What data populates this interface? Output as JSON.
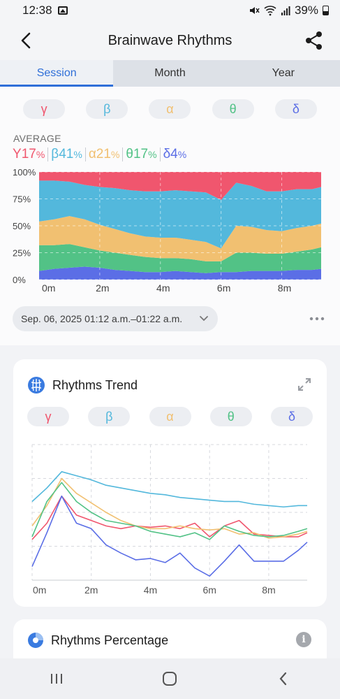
{
  "status": {
    "time": "12:38",
    "battery": "39%"
  },
  "app_bar": {
    "title": "Brainwave Rhythms"
  },
  "tabs": [
    {
      "label": "Session",
      "active": true
    },
    {
      "label": "Month",
      "active": false
    },
    {
      "label": "Year",
      "active": false
    }
  ],
  "bands": [
    {
      "symbol": "γ",
      "color": "#f0566e"
    },
    {
      "symbol": "β",
      "color": "#53b8dc"
    },
    {
      "symbol": "α",
      "color": "#f1c071"
    },
    {
      "symbol": "θ",
      "color": "#52c286"
    },
    {
      "symbol": "δ",
      "color": "#5b6ee6"
    }
  ],
  "average": {
    "label": "AVERAGE",
    "items": [
      {
        "symbol": "Y",
        "value": "17",
        "unit": "%",
        "color": "#f0566e"
      },
      {
        "symbol": "β",
        "value": "41",
        "unit": "%",
        "color": "#53b8dc"
      },
      {
        "symbol": "α",
        "value": "21",
        "unit": "%",
        "color": "#f1c071"
      },
      {
        "symbol": "θ",
        "value": "17",
        "unit": "%",
        "color": "#52c286"
      },
      {
        "symbol": "δ",
        "value": "4",
        "unit": "%",
        "color": "#5b6ee6"
      }
    ]
  },
  "session_range": "Sep. 06, 2025 01:12 a.m.–01:22 a.m.",
  "trend_card": {
    "title": "Rhythms Trend"
  },
  "percentage_card": {
    "title": "Rhythms Percentage"
  },
  "chart_data": [
    {
      "type": "area",
      "stacked": true,
      "y_unit": "%",
      "ylim": [
        0,
        100
      ],
      "yticks": [
        "0%",
        "25%",
        "50%",
        "75%",
        "100%"
      ],
      "xlim": [
        0,
        9.3
      ],
      "xticks": [
        "0m",
        "2m",
        "4m",
        "6m",
        "8m"
      ],
      "x": [
        0,
        0.5,
        1,
        1.5,
        2,
        2.5,
        3,
        3.5,
        4,
        4.5,
        5,
        5.5,
        6,
        6.5,
        7,
        7.5,
        8,
        8.5,
        9,
        9.3
      ],
      "series": [
        {
          "name": "δ",
          "color": "#5b6ee6",
          "values": [
            8,
            10,
            11,
            12,
            11,
            9,
            8,
            7,
            7,
            8,
            7,
            6,
            7,
            7,
            8,
            8,
            8,
            9,
            9,
            10
          ]
        },
        {
          "name": "θ",
          "color": "#52c286",
          "values": [
            24,
            22,
            22,
            18,
            16,
            16,
            15,
            14,
            13,
            12,
            12,
            11,
            10,
            18,
            17,
            16,
            16,
            17,
            19,
            20
          ]
        },
        {
          "name": "α",
          "color": "#f1c071",
          "values": [
            22,
            24,
            26,
            26,
            24,
            22,
            20,
            19,
            19,
            19,
            18,
            18,
            12,
            25,
            24,
            22,
            21,
            22,
            22,
            22
          ]
        },
        {
          "name": "β",
          "color": "#53b8dc",
          "values": [
            38,
            36,
            32,
            32,
            35,
            38,
            40,
            42,
            43,
            44,
            45,
            46,
            45,
            40,
            38,
            36,
            37,
            36,
            34,
            34
          ]
        },
        {
          "name": "γ",
          "color": "#f0566e",
          "values": [
            8,
            8,
            9,
            12,
            14,
            15,
            17,
            18,
            18,
            17,
            18,
            19,
            26,
            10,
            13,
            18,
            18,
            16,
            16,
            14
          ]
        }
      ]
    },
    {
      "type": "line",
      "xlim": [
        0,
        9.3
      ],
      "xticks": [
        "0m",
        "2m",
        "4m",
        "6m",
        "8m"
      ],
      "x": [
        0,
        0.5,
        1,
        1.5,
        2,
        2.5,
        3,
        3.5,
        4,
        4.5,
        5,
        5.5,
        6,
        6.5,
        7,
        7.5,
        8,
        8.5,
        9,
        9.3
      ],
      "series": [
        {
          "name": "γ",
          "color": "#f0566e",
          "values": [
            30,
            42,
            62,
            48,
            44,
            40,
            38,
            40,
            39,
            40,
            38,
            42,
            32,
            40,
            44,
            34,
            33,
            32,
            32,
            35
          ]
        },
        {
          "name": "β",
          "color": "#53b8dc",
          "values": [
            58,
            68,
            80,
            77,
            74,
            70,
            68,
            66,
            64,
            63,
            61,
            60,
            59,
            58,
            58,
            56,
            55,
            54,
            55,
            55
          ]
        },
        {
          "name": "α",
          "color": "#f1c071",
          "values": [
            40,
            55,
            75,
            64,
            57,
            50,
            44,
            40,
            38,
            38,
            40,
            38,
            37,
            38,
            34,
            35,
            31,
            32,
            34,
            36
          ]
        },
        {
          "name": "θ",
          "color": "#52c286",
          "values": [
            32,
            58,
            72,
            58,
            50,
            44,
            42,
            40,
            36,
            34,
            32,
            35,
            30,
            40,
            36,
            33,
            32,
            33,
            36,
            38
          ]
        },
        {
          "name": "δ",
          "color": "#5b6ee6",
          "values": [
            10,
            35,
            62,
            42,
            38,
            26,
            20,
            15,
            16,
            13,
            20,
            9,
            3,
            14,
            26,
            14,
            14,
            14,
            22,
            28
          ]
        }
      ]
    }
  ]
}
